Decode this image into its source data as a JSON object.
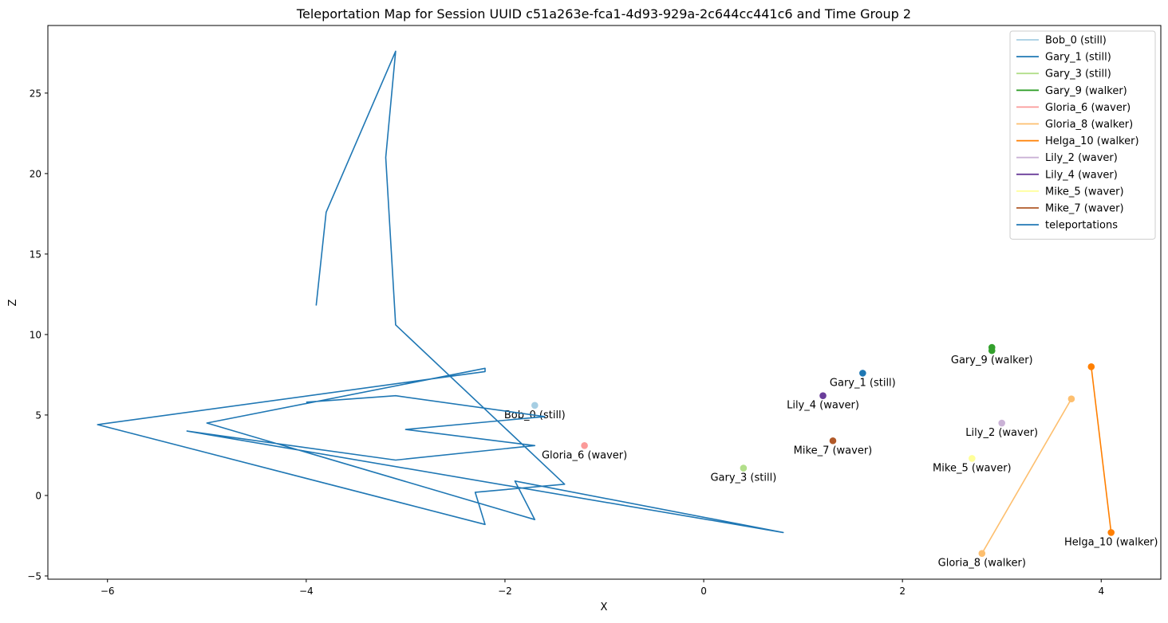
{
  "chart_data": {
    "type": "line",
    "title": "Teleportation Map for Session UUID c51a263e-fca1-4d93-929a-2c644cc441c6 and Time Group 2",
    "xlabel": "X",
    "ylabel": "Z",
    "xlim": [
      -6.6,
      4.6
    ],
    "ylim": [
      -5.2,
      29.2
    ],
    "xticks": [
      -6,
      -4,
      -2,
      0,
      2,
      4
    ],
    "yticks": [
      -5,
      0,
      5,
      10,
      15,
      20,
      25
    ],
    "grid": false,
    "legend_position": "top-right",
    "series": [
      {
        "name": "Bob_0 (still)",
        "color": "#a6cee3",
        "label": "Bob_0 (still)",
        "points": [
          [
            -1.7,
            5.6
          ]
        ]
      },
      {
        "name": "Gary_1 (still)",
        "color": "#1f78b4",
        "label": "Gary_1 (still)",
        "points": [
          [
            1.6,
            7.6
          ]
        ]
      },
      {
        "name": "Gary_3 (still)",
        "color": "#b2df8a",
        "label": "Gary_3 (still)",
        "points": [
          [
            0.4,
            1.7
          ]
        ]
      },
      {
        "name": "Gary_9 (walker)",
        "color": "#33a02c",
        "label": "Gary_9 (walker)",
        "points": [
          [
            2.9,
            9.2
          ],
          [
            2.9,
            9.0
          ]
        ]
      },
      {
        "name": "Gloria_6 (waver)",
        "color": "#fb9a99",
        "label": "Gloria_6 (waver)",
        "points": [
          [
            -1.2,
            3.1
          ]
        ]
      },
      {
        "name": "Gloria_8 (walker)",
        "color": "#fdbf6f",
        "label": "Gloria_8 (walker)",
        "points": [
          [
            3.7,
            6.0
          ],
          [
            2.8,
            -3.6
          ]
        ]
      },
      {
        "name": "Helga_10 (walker)",
        "color": "#ff7f00",
        "label": "Helga_10 (walker)",
        "points": [
          [
            3.9,
            8.0
          ],
          [
            4.1,
            -2.3
          ]
        ]
      },
      {
        "name": "Lily_2 (waver)",
        "color": "#cab2d6",
        "label": "Lily_2 (waver)",
        "points": [
          [
            3.0,
            4.5
          ]
        ]
      },
      {
        "name": "Lily_4 (waver)",
        "color": "#6a3d9a",
        "label": "Lily_4 (waver)",
        "points": [
          [
            1.2,
            6.2
          ]
        ]
      },
      {
        "name": "Mike_5 (waver)",
        "color": "#ffff99",
        "label": "Mike_5 (waver)",
        "points": [
          [
            2.7,
            2.3
          ]
        ]
      },
      {
        "name": "Mike_7 (waver)",
        "color": "#b15928",
        "label": "Mike_7 (waver)",
        "points": [
          [
            1.3,
            3.4
          ]
        ]
      },
      {
        "name": "teleportations",
        "color": "#1f77b4",
        "points": [
          [
            -3.9,
            11.8
          ],
          [
            -3.8,
            17.6
          ],
          [
            -3.1,
            27.6
          ],
          [
            -3.2,
            21.0
          ],
          [
            -3.1,
            10.6
          ],
          [
            -1.4,
            0.7
          ],
          [
            -2.3,
            0.2
          ],
          [
            -2.2,
            -1.8
          ],
          [
            -6.1,
            4.4
          ],
          [
            -2.2,
            7.7
          ],
          [
            -2.2,
            7.9
          ],
          [
            -5.0,
            4.5
          ],
          [
            -1.7,
            -1.5
          ],
          [
            -1.9,
            0.9
          ],
          [
            0.8,
            -2.3
          ],
          [
            -5.2,
            4.0
          ],
          [
            -3.1,
            2.2
          ],
          [
            -1.7,
            3.1
          ],
          [
            -3.0,
            4.1
          ],
          [
            -1.6,
            4.9
          ],
          [
            -3.1,
            6.2
          ],
          [
            -4.0,
            5.8
          ]
        ]
      }
    ]
  }
}
